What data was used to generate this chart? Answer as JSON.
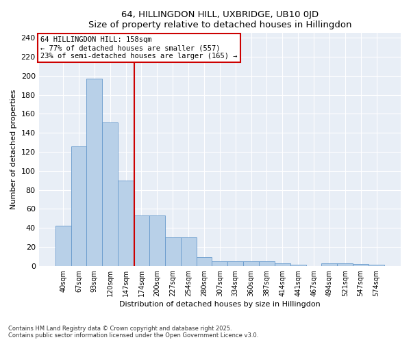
{
  "title1": "64, HILLINGDON HILL, UXBRIDGE, UB10 0JD",
  "title2": "Size of property relative to detached houses in Hillingdon",
  "xlabel": "Distribution of detached houses by size in Hillingdon",
  "ylabel": "Number of detached properties",
  "categories": [
    "40sqm",
    "67sqm",
    "93sqm",
    "120sqm",
    "147sqm",
    "174sqm",
    "200sqm",
    "227sqm",
    "254sqm",
    "280sqm",
    "307sqm",
    "334sqm",
    "360sqm",
    "387sqm",
    "414sqm",
    "441sqm",
    "467sqm",
    "494sqm",
    "521sqm",
    "547sqm",
    "574sqm"
  ],
  "values": [
    42,
    126,
    197,
    151,
    90,
    53,
    53,
    30,
    30,
    9,
    5,
    5,
    5,
    5,
    3,
    1,
    0,
    3,
    3,
    2,
    1
  ],
  "bar_color": "#b8d0e8",
  "bar_edge_color": "#6699cc",
  "vline_color": "#cc0000",
  "annotation_box_color": "#cc0000",
  "ylim": [
    0,
    245
  ],
  "yticks": [
    0,
    20,
    40,
    60,
    80,
    100,
    120,
    140,
    160,
    180,
    200,
    220,
    240
  ],
  "footnote1": "Contains HM Land Registry data © Crown copyright and database right 2025.",
  "footnote2": "Contains public sector information licensed under the Open Government Licence v3.0.",
  "bg_color": "#ffffff",
  "plot_bg_color": "#e8eef6",
  "annotation_title": "64 HILLINGDON HILL: 158sqm",
  "annotation_line1": "← 77% of detached houses are smaller (557)",
  "annotation_line2": "23% of semi-detached houses are larger (165) →",
  "vline_x_pos": 4.55
}
